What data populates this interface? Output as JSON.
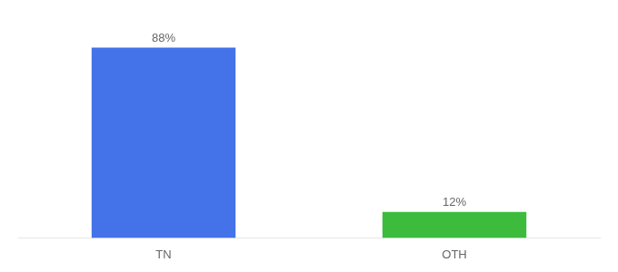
{
  "chart_data": {
    "type": "bar",
    "categories": [
      "TN",
      "OTH"
    ],
    "values": [
      88,
      12
    ],
    "value_labels": [
      "88%",
      "12%"
    ],
    "data_labels": true,
    "colors": [
      "#4472e8",
      "#3dbb3d"
    ],
    "ylim": [
      0,
      100
    ],
    "grid": false,
    "tick_labels": "x"
  }
}
